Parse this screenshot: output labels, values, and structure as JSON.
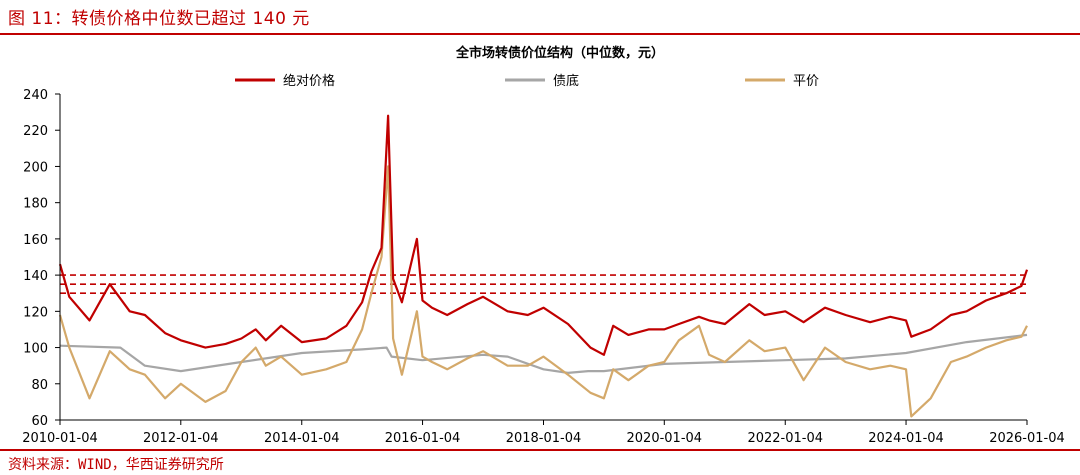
{
  "figure": {
    "title": "图 11：转债价格中位数已超过 140 元",
    "source": "资料来源：WIND，华西证券研究所"
  },
  "chart_data": {
    "type": "line",
    "title": "全市场转债价位结构（中位数，元）",
    "xlabel": "",
    "ylabel": "",
    "ylim": [
      60,
      240
    ],
    "yticks": [
      60,
      80,
      100,
      120,
      140,
      160,
      180,
      200,
      220,
      240
    ],
    "xticks": [
      "2010-01-04",
      "2012-01-04",
      "2014-01-04",
      "2016-01-04",
      "2018-01-04",
      "2020-01-04",
      "2022-01-04",
      "2024-01-04",
      "2026-01-04"
    ],
    "legend_position": "top",
    "grid": false,
    "series": [
      {
        "name": "绝对价格",
        "color": "#c00000",
        "x": [
          "2010-01-04",
          "2010-03-01",
          "2010-07-01",
          "2010-11-01",
          "2011-03-01",
          "2011-06-01",
          "2011-10-01",
          "2012-01-04",
          "2012-06-01",
          "2012-10-01",
          "2013-01-04",
          "2013-04-01",
          "2013-06-01",
          "2013-09-01",
          "2014-01-04",
          "2014-06-01",
          "2014-10-01",
          "2015-01-04",
          "2015-03-01",
          "2015-05-01",
          "2015-06-10",
          "2015-07-10",
          "2015-09-01",
          "2015-12-01",
          "2016-01-04",
          "2016-03-01",
          "2016-06-01",
          "2016-10-01",
          "2017-01-04",
          "2017-06-01",
          "2017-10-01",
          "2018-01-04",
          "2018-06-01",
          "2018-10-15",
          "2019-01-04",
          "2019-03-01",
          "2019-06-01",
          "2019-10-01",
          "2020-01-04",
          "2020-04-01",
          "2020-08-01",
          "2020-10-01",
          "2021-01-04",
          "2021-06-01",
          "2021-09-01",
          "2022-01-04",
          "2022-04-25",
          "2022-09-01",
          "2023-01-04",
          "2023-06-01",
          "2023-10-01",
          "2024-01-04",
          "2024-02-05",
          "2024-06-01",
          "2024-10-01",
          "2025-01-04",
          "2025-05-01",
          "2025-09-01",
          "2025-12-01",
          "2026-01-04"
        ],
        "y": [
          146,
          128,
          115,
          135,
          120,
          118,
          108,
          104,
          100,
          102,
          105,
          110,
          104,
          112,
          103,
          105,
          112,
          125,
          142,
          155,
          228,
          138,
          125,
          160,
          126,
          122,
          118,
          124,
          128,
          120,
          118,
          122,
          113,
          100,
          96,
          112,
          107,
          110,
          110,
          113,
          117,
          115,
          113,
          124,
          118,
          120,
          114,
          122,
          118,
          114,
          117,
          115,
          106,
          110,
          118,
          120,
          126,
          130,
          134,
          143
        ]
      },
      {
        "name": "债底",
        "color": "#a6a6a6",
        "x": [
          "2010-01-04",
          "2011-01-04",
          "2011-06-01",
          "2012-01-04",
          "2013-01-04",
          "2014-01-04",
          "2015-01-04",
          "2015-06-01",
          "2015-07-01",
          "2016-01-04",
          "2017-01-04",
          "2017-06-01",
          "2018-01-04",
          "2018-06-01",
          "2018-10-01",
          "2019-01-04",
          "2020-01-04",
          "2021-01-04",
          "2022-01-04",
          "2023-01-04",
          "2024-01-04",
          "2025-01-04",
          "2026-01-04"
        ],
        "y": [
          101,
          100,
          90,
          87,
          92,
          97,
          99,
          100,
          95,
          93,
          96,
          95,
          88,
          86,
          87,
          87,
          91,
          92,
          93,
          94,
          97,
          103,
          107
        ]
      },
      {
        "name": "平价",
        "color": "#d4a96a",
        "x": [
          "2010-01-04",
          "2010-03-01",
          "2010-07-01",
          "2010-11-01",
          "2011-03-01",
          "2011-06-01",
          "2011-10-01",
          "2012-01-04",
          "2012-06-01",
          "2012-10-01",
          "2013-01-04",
          "2013-04-01",
          "2013-06-01",
          "2013-09-01",
          "2014-01-04",
          "2014-06-01",
          "2014-10-01",
          "2015-01-04",
          "2015-03-01",
          "2015-05-01",
          "2015-06-10",
          "2015-07-10",
          "2015-09-01",
          "2015-12-01",
          "2016-01-04",
          "2016-03-01",
          "2016-06-01",
          "2016-10-01",
          "2017-01-04",
          "2017-06-01",
          "2017-10-01",
          "2018-01-04",
          "2018-06-01",
          "2018-10-15",
          "2019-01-04",
          "2019-03-01",
          "2019-06-01",
          "2019-10-01",
          "2020-01-04",
          "2020-04-01",
          "2020-08-01",
          "2020-10-01",
          "2021-01-04",
          "2021-06-01",
          "2021-09-01",
          "2022-01-04",
          "2022-04-25",
          "2022-09-01",
          "2023-01-04",
          "2023-06-01",
          "2023-10-01",
          "2024-01-04",
          "2024-02-05",
          "2024-06-01",
          "2024-10-01",
          "2025-01-04",
          "2025-05-01",
          "2025-09-01",
          "2025-12-01",
          "2026-01-04"
        ],
        "y": [
          118,
          100,
          72,
          98,
          88,
          85,
          72,
          80,
          70,
          76,
          92,
          100,
          90,
          95,
          85,
          88,
          92,
          110,
          130,
          150,
          200,
          105,
          85,
          120,
          95,
          92,
          88,
          94,
          98,
          90,
          90,
          95,
          85,
          75,
          72,
          88,
          82,
          90,
          92,
          104,
          112,
          96,
          92,
          104,
          98,
          100,
          82,
          100,
          92,
          88,
          90,
          88,
          62,
          72,
          92,
          95,
          100,
          104,
          106,
          112
        ]
      }
    ],
    "reference_lines": [
      {
        "y": 140,
        "color": "#c00000",
        "style": "dashed"
      },
      {
        "y": 135,
        "color": "#c00000",
        "style": "dashed"
      },
      {
        "y": 130,
        "color": "#c00000",
        "style": "dashed"
      }
    ]
  }
}
